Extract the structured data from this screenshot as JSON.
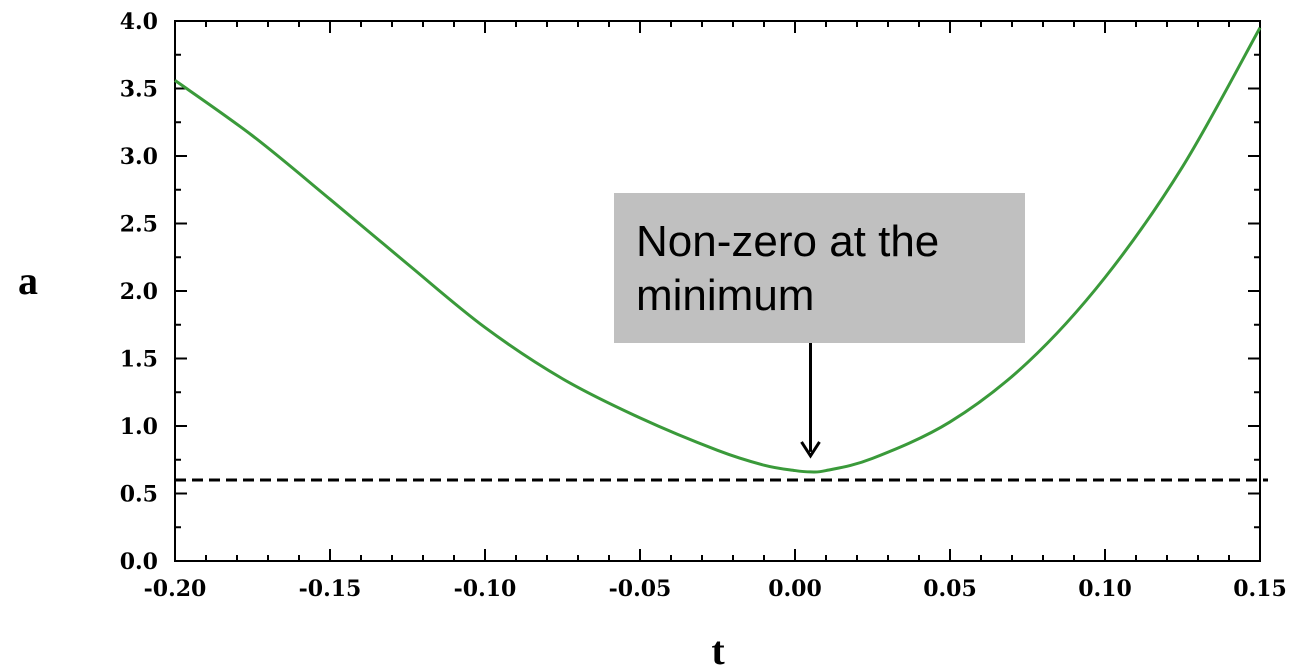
{
  "chart_data": {
    "type": "line",
    "xlabel": "t",
    "ylabel": "a",
    "xlim": [
      -0.2,
      0.15
    ],
    "ylim": [
      0.0,
      4.0
    ],
    "x_ticks": [
      "-0.20",
      "-0.15",
      "-0.10",
      "-0.05",
      "0.00",
      "0.05",
      "0.10",
      "0.15"
    ],
    "y_ticks": [
      "0.0",
      "0.5",
      "1.0",
      "1.5",
      "2.0",
      "2.5",
      "3.0",
      "3.5",
      "4.0"
    ],
    "grid": false,
    "series": [
      {
        "color": "#3a9a3a",
        "x": [
          -0.2,
          -0.175,
          -0.15,
          -0.125,
          -0.1,
          -0.075,
          -0.05,
          -0.025,
          -0.01,
          0.0,
          0.005,
          0.01,
          0.025,
          0.05,
          0.075,
          0.1,
          0.125,
          0.15
        ],
        "y": [
          3.56,
          3.15,
          2.68,
          2.2,
          1.73,
          1.35,
          1.06,
          0.82,
          0.71,
          0.67,
          0.66,
          0.67,
          0.76,
          1.03,
          1.47,
          2.1,
          2.92,
          3.95
        ]
      }
    ],
    "reference_line": {
      "y": 0.6,
      "style": "dashed",
      "color": "#000000"
    },
    "annotation": {
      "text": "Non-zero at the minimum",
      "points_to": {
        "x": 0.005,
        "y": 0.66
      }
    }
  }
}
